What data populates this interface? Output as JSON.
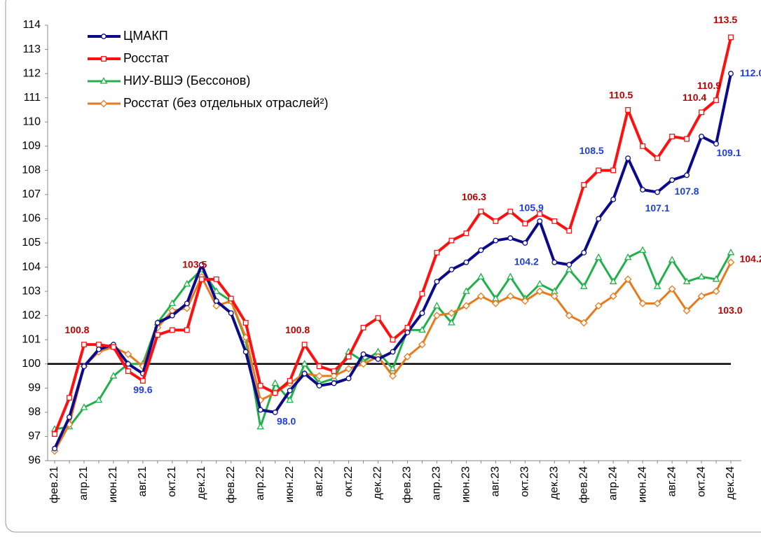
{
  "chart_data": {
    "type": "line",
    "categories": [
      "фев.21",
      null,
      "апр.21",
      null,
      "июн.21",
      null,
      "авг.21",
      null,
      "окт.21",
      null,
      "дек.21",
      null,
      "фев.22",
      null,
      "апр.22",
      null,
      "июн.22",
      null,
      "авг.22",
      null,
      "окт.22",
      null,
      "дек.22",
      null,
      "фев.23",
      null,
      "апр.23",
      null,
      "июн.23",
      null,
      "авг.23",
      null,
      "окт.23",
      null,
      "дек.23",
      null,
      "фев.24",
      null,
      "апр.24",
      null,
      "июн.24",
      null,
      "авг.24",
      null,
      "окт.24",
      null,
      "дек.24"
    ],
    "series": [
      {
        "name": "ЦМАКП",
        "color": "#0a0a8a",
        "marker": "circle",
        "label_color": "#1f3fe0",
        "values": [
          96.5,
          97.8,
          99.9,
          100.6,
          100.8,
          100.0,
          99.6,
          101.7,
          102.0,
          102.5,
          104.1,
          102.6,
          102.1,
          100.5,
          98.1,
          98.0,
          98.9,
          99.6,
          99.1,
          99.2,
          99.4,
          100.4,
          100.2,
          100.5,
          101.3,
          102.1,
          103.4,
          103.9,
          104.2,
          104.7,
          105.1,
          105.2,
          105.0,
          105.9,
          104.2,
          104.1,
          104.6,
          106.0,
          106.8,
          108.5,
          107.2,
          107.1,
          107.6,
          107.8,
          109.4,
          109.1,
          112.0
        ],
        "value_labels": [
          null,
          null,
          null,
          null,
          null,
          null,
          "99.6",
          null,
          null,
          null,
          null,
          null,
          null,
          null,
          null,
          "98.0",
          null,
          null,
          null,
          null,
          null,
          null,
          null,
          null,
          null,
          null,
          null,
          null,
          null,
          null,
          null,
          null,
          null,
          "105.9",
          "104.2",
          null,
          null,
          null,
          null,
          "108.5",
          null,
          "107.1",
          null,
          "107.8",
          null,
          "109.1",
          "112.0"
        ]
      },
      {
        "name": "Росстат",
        "color": "#ff1010",
        "marker": "square",
        "label_color": "#c00000",
        "values": [
          97.1,
          98.6,
          100.8,
          100.8,
          100.7,
          99.7,
          99.3,
          101.2,
          101.4,
          101.4,
          103.5,
          103.5,
          102.7,
          101.7,
          99.1,
          98.8,
          99.3,
          100.8,
          99.9,
          99.7,
          100.3,
          101.5,
          101.9,
          101.0,
          101.5,
          102.9,
          104.6,
          105.1,
          105.4,
          106.3,
          105.9,
          106.3,
          105.8,
          106.2,
          105.9,
          105.5,
          107.4,
          108.0,
          108.0,
          110.5,
          109.0,
          108.5,
          109.4,
          109.3,
          110.4,
          110.9,
          113.5
        ],
        "value_labels": [
          null,
          null,
          "100.8",
          null,
          null,
          null,
          null,
          null,
          null,
          null,
          "103.5",
          null,
          null,
          null,
          null,
          null,
          null,
          "100.8",
          null,
          null,
          null,
          null,
          null,
          null,
          null,
          null,
          null,
          null,
          null,
          "106.3",
          null,
          null,
          null,
          null,
          null,
          null,
          null,
          null,
          null,
          "110.5",
          null,
          null,
          null,
          null,
          "110.4",
          "110.9",
          "113.5"
        ]
      },
      {
        "name": "НИУ-ВШЭ (Бессонов)",
        "color": "#22b04a",
        "marker": "triangle",
        "label_color": "#22b04a",
        "values": [
          97.3,
          97.4,
          98.2,
          98.5,
          99.5,
          100.0,
          100.0,
          101.7,
          102.5,
          103.3,
          103.9,
          103.0,
          102.6,
          101.0,
          97.4,
          99.2,
          98.5,
          100.0,
          99.2,
          99.4,
          100.5,
          100.1,
          100.5,
          99.8,
          101.4,
          101.4,
          102.4,
          101.7,
          103.0,
          103.6,
          102.7,
          103.6,
          102.7,
          103.3,
          103.0,
          103.9,
          103.2,
          104.4,
          103.4,
          104.4,
          104.7,
          103.2,
          104.3,
          103.4,
          103.6,
          103.5,
          104.6
        ]
      },
      {
        "name": "Росстат (без отдельных отраслей²)",
        "color": "#e87a1e",
        "marker": "diamond",
        "label_color": "#c00000",
        "values": [
          96.4,
          97.5,
          99.9,
          100.5,
          100.7,
          100.4,
          99.9,
          101.5,
          102.2,
          102.3,
          103.6,
          102.4,
          102.6,
          101.1,
          98.5,
          98.8,
          99.2,
          99.6,
          99.5,
          99.5,
          99.8,
          100.0,
          100.3,
          99.5,
          100.3,
          100.8,
          102.0,
          102.1,
          102.4,
          102.8,
          102.5,
          102.8,
          102.6,
          103.0,
          102.8,
          102.0,
          101.7,
          102.4,
          102.8,
          103.5,
          102.5,
          102.5,
          103.1,
          102.2,
          102.8,
          103.0,
          104.2
        ],
        "value_labels": [
          null,
          null,
          null,
          null,
          null,
          null,
          null,
          null,
          null,
          null,
          null,
          null,
          null,
          null,
          null,
          null,
          null,
          null,
          null,
          null,
          null,
          null,
          null,
          null,
          null,
          null,
          null,
          null,
          null,
          null,
          null,
          null,
          null,
          null,
          null,
          null,
          null,
          null,
          null,
          null,
          null,
          null,
          null,
          null,
          null,
          "103.0",
          "104.2"
        ]
      }
    ],
    "ylim": [
      96,
      114
    ],
    "yticks": [
      96,
      97,
      98,
      99,
      100,
      101,
      102,
      103,
      104,
      105,
      106,
      107,
      108,
      109,
      110,
      111,
      112,
      113,
      114
    ],
    "reference_line": 100,
    "grid": false,
    "legend": "upper left"
  }
}
